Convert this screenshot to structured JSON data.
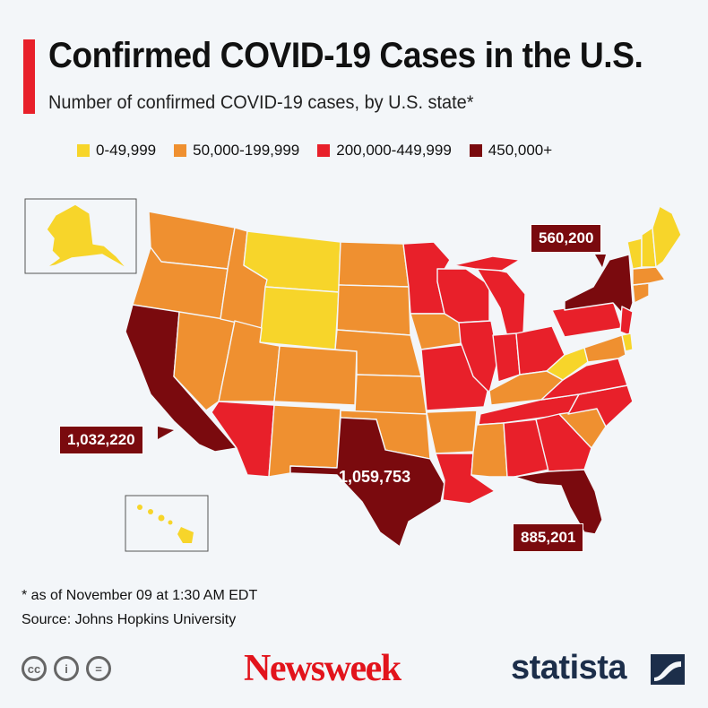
{
  "title": "Confirmed COVID-19 Cases in the U.S.",
  "subtitle": "Number of confirmed COVID-19 cases, by U.S. state*",
  "legend": [
    {
      "label": "0-49,999",
      "color": "#f7d52a"
    },
    {
      "label": "50,000-199,999",
      "color": "#ef9030"
    },
    {
      "label": "200,000-449,999",
      "color": "#e8202a"
    },
    {
      "label": "450,000+",
      "color": "#7a0a0e"
    }
  ],
  "callouts": {
    "new_york": "560,200",
    "california": "1,032,220",
    "texas": "1,059,753",
    "florida": "885,201"
  },
  "footnote": "* as of November 09 at 1:30 AM EDT",
  "source": "Source: Johns Hopkins University",
  "cc_icons": [
    {
      "icon": "cc-icon",
      "text": "cc"
    },
    {
      "icon": "by-person-icon",
      "text": "i"
    },
    {
      "icon": "no-derivatives-icon",
      "text": "="
    }
  ],
  "brands": {
    "newsweek": "Newsweek",
    "statista": "statista"
  }
}
